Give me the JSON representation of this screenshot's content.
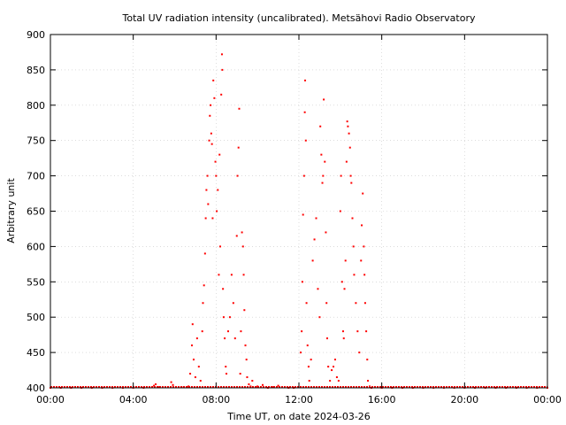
{
  "chart_data": {
    "type": "scatter",
    "title": "Total UV radiation intensity (uncalibrated). Metsähovi Radio Observatory",
    "xlabel": "Time UT, on date 2024-03-26",
    "ylabel": "Arbitrary unit",
    "xlim": [
      "00:00",
      "24:00"
    ],
    "ylim": [
      400,
      900
    ],
    "x_ticks": [
      "00:00",
      "04:00",
      "08:00",
      "12:00",
      "16:00",
      "20:00",
      "00:00"
    ],
    "y_ticks": [
      400,
      450,
      500,
      550,
      600,
      650,
      700,
      750,
      800,
      850,
      900
    ],
    "grid": true,
    "series_color": "#ff0000",
    "series": [
      {
        "points": [
          [
            "00:00",
            400
          ],
          [
            "00:30",
            400
          ],
          [
            "01:00",
            400
          ],
          [
            "01:30",
            400
          ],
          [
            "02:00",
            400
          ],
          [
            "02:30",
            400
          ],
          [
            "03:00",
            400
          ],
          [
            "03:30",
            400
          ],
          [
            "04:00",
            400
          ],
          [
            "04:30",
            400
          ],
          [
            "05:00",
            403
          ],
          [
            "05:05",
            405
          ],
          [
            "05:15",
            401
          ],
          [
            "05:50",
            408
          ],
          [
            "05:55",
            404
          ],
          [
            "06:20",
            401
          ],
          [
            "06:40",
            402
          ],
          [
            "06:45",
            420
          ],
          [
            "06:50",
            460
          ],
          [
            "06:52",
            490
          ],
          [
            "06:55",
            440
          ],
          [
            "07:00",
            415
          ],
          [
            "07:05",
            470
          ],
          [
            "07:10",
            430
          ],
          [
            "07:15",
            410
          ],
          [
            "07:20",
            480
          ],
          [
            "07:22",
            520
          ],
          [
            "07:25",
            545
          ],
          [
            "07:28",
            590
          ],
          [
            "07:30",
            640
          ],
          [
            "07:32",
            680
          ],
          [
            "07:35",
            700
          ],
          [
            "07:37",
            660
          ],
          [
            "07:40",
            750
          ],
          [
            "07:42",
            785
          ],
          [
            "07:44",
            800
          ],
          [
            "07:46",
            760
          ],
          [
            "07:48",
            745
          ],
          [
            "07:50",
            640
          ],
          [
            "07:52",
            835
          ],
          [
            "07:55",
            810
          ],
          [
            "07:58",
            720
          ],
          [
            "08:00",
            700
          ],
          [
            "08:02",
            650
          ],
          [
            "08:05",
            680
          ],
          [
            "08:08",
            560
          ],
          [
            "08:10",
            730
          ],
          [
            "08:12",
            600
          ],
          [
            "08:15",
            815
          ],
          [
            "08:17",
            872
          ],
          [
            "08:18",
            850
          ],
          [
            "08:20",
            540
          ],
          [
            "08:22",
            500
          ],
          [
            "08:25",
            470
          ],
          [
            "08:28",
            430
          ],
          [
            "08:30",
            420
          ],
          [
            "08:35",
            480
          ],
          [
            "08:40",
            500
          ],
          [
            "08:45",
            560
          ],
          [
            "08:50",
            520
          ],
          [
            "08:55",
            470
          ],
          [
            "09:00",
            615
          ],
          [
            "09:02",
            700
          ],
          [
            "09:05",
            740
          ],
          [
            "09:07",
            795
          ],
          [
            "09:10",
            420
          ],
          [
            "09:12",
            480
          ],
          [
            "09:15",
            620
          ],
          [
            "09:18",
            600
          ],
          [
            "09:20",
            560
          ],
          [
            "09:22",
            510
          ],
          [
            "09:25",
            460
          ],
          [
            "09:28",
            440
          ],
          [
            "09:30",
            415
          ],
          [
            "09:35",
            405
          ],
          [
            "09:40",
            402
          ],
          [
            "09:45",
            410
          ],
          [
            "10:00",
            402
          ],
          [
            "10:15",
            404
          ],
          [
            "10:30",
            400
          ],
          [
            "10:45",
            401
          ],
          [
            "11:00",
            403
          ],
          [
            "11:30",
            400
          ],
          [
            "11:45",
            400
          ],
          [
            "12:05",
            450
          ],
          [
            "12:08",
            480
          ],
          [
            "12:10",
            550
          ],
          [
            "12:12",
            645
          ],
          [
            "12:15",
            700
          ],
          [
            "12:17",
            790
          ],
          [
            "12:18",
            835
          ],
          [
            "12:20",
            750
          ],
          [
            "12:22",
            520
          ],
          [
            "12:25",
            460
          ],
          [
            "12:28",
            430
          ],
          [
            "12:30",
            410
          ],
          [
            "12:35",
            440
          ],
          [
            "12:40",
            580
          ],
          [
            "12:45",
            610
          ],
          [
            "12:50",
            640
          ],
          [
            "12:55",
            540
          ],
          [
            "13:00",
            500
          ],
          [
            "13:02",
            770
          ],
          [
            "13:05",
            730
          ],
          [
            "13:08",
            690
          ],
          [
            "13:10",
            700
          ],
          [
            "13:12",
            808
          ],
          [
            "13:15",
            720
          ],
          [
            "13:18",
            620
          ],
          [
            "13:20",
            520
          ],
          [
            "13:22",
            470
          ],
          [
            "13:25",
            430
          ],
          [
            "13:30",
            410
          ],
          [
            "13:35",
            425
          ],
          [
            "13:40",
            430
          ],
          [
            "13:45",
            440
          ],
          [
            "13:50",
            415
          ],
          [
            "13:55",
            410
          ],
          [
            "14:00",
            650
          ],
          [
            "14:02",
            700
          ],
          [
            "14:05",
            550
          ],
          [
            "14:08",
            480
          ],
          [
            "14:10",
            470
          ],
          [
            "14:12",
            540
          ],
          [
            "14:15",
            580
          ],
          [
            "14:18",
            720
          ],
          [
            "14:20",
            777
          ],
          [
            "14:22",
            770
          ],
          [
            "14:25",
            760
          ],
          [
            "14:28",
            740
          ],
          [
            "14:30",
            700
          ],
          [
            "14:32",
            690
          ],
          [
            "14:35",
            640
          ],
          [
            "14:38",
            600
          ],
          [
            "14:40",
            560
          ],
          [
            "14:45",
            520
          ],
          [
            "14:50",
            480
          ],
          [
            "14:55",
            450
          ],
          [
            "15:00",
            580
          ],
          [
            "15:02",
            630
          ],
          [
            "15:05",
            675
          ],
          [
            "15:08",
            600
          ],
          [
            "15:10",
            560
          ],
          [
            "15:12",
            520
          ],
          [
            "15:15",
            480
          ],
          [
            "15:18",
            440
          ],
          [
            "15:20",
            410
          ],
          [
            "15:25",
            402
          ],
          [
            "15:30",
            400
          ],
          [
            "16:00",
            400
          ],
          [
            "16:30",
            400
          ],
          [
            "17:00",
            400
          ],
          [
            "17:30",
            400
          ],
          [
            "18:00",
            400
          ],
          [
            "18:30",
            400
          ],
          [
            "19:00",
            400
          ],
          [
            "19:30",
            400
          ],
          [
            "20:00",
            400
          ],
          [
            "20:30",
            400
          ],
          [
            "21:00",
            400
          ],
          [
            "21:30",
            400
          ],
          [
            "22:00",
            400
          ],
          [
            "22:30",
            400
          ],
          [
            "23:00",
            400
          ],
          [
            "23:30",
            400
          ],
          [
            "24:00",
            400
          ]
        ]
      }
    ]
  }
}
